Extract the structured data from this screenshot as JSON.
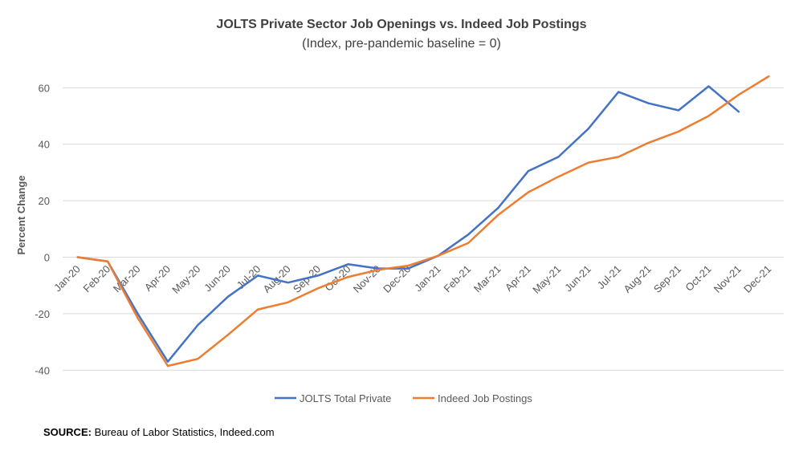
{
  "chart_data": {
    "type": "line",
    "title": "JOLTS Private Sector Job Openings vs. Indeed Job Postings",
    "subtitle": "(Index, pre-pandemic baseline = 0)",
    "xlabel": "",
    "ylabel": "Percent Change",
    "categories": [
      "Jan-20",
      "Feb-20",
      "Mar-20",
      "Apr-20",
      "May-20",
      "Jun-20",
      "Jul-20",
      "Aug-20",
      "Sep-20",
      "Oct-20",
      "Nov-20",
      "Dec-20",
      "Jan-21",
      "Feb-21",
      "Mar-21",
      "Apr-21",
      "May-21",
      "Jun-21",
      "Jul-21",
      "Aug-21",
      "Sep-21",
      "Oct-21",
      "Nov-21",
      "Dec-21"
    ],
    "yticks": [
      -40,
      -20,
      0,
      20,
      40,
      60
    ],
    "ylim": [
      -50,
      70
    ],
    "grid": true,
    "legend_position": "bottom",
    "series": [
      {
        "name": "JOLTS Total Private",
        "color": "#4472C4",
        "values": [
          0,
          -1.5,
          -20,
          -37,
          -24,
          -14,
          -6.5,
          -9,
          -6.5,
          -2.5,
          -4,
          -4,
          0.5,
          8,
          17.5,
          30.5,
          35.5,
          45.5,
          58.5,
          54.5,
          52,
          60.5,
          51.5,
          null
        ]
      },
      {
        "name": "Indeed Job Postings",
        "color": "#ED7D31",
        "values": [
          0,
          -1.5,
          -21.5,
          -38.5,
          -36,
          -27.5,
          -18.5,
          -16,
          -11,
          -7,
          -4.5,
          -3,
          0.5,
          5,
          15,
          23,
          28.5,
          33.5,
          35.5,
          40.5,
          44.5,
          50,
          57.5,
          64
        ]
      }
    ]
  },
  "source": {
    "label": "SOURCE:",
    "text": " Bureau of Labor Statistics, Indeed.com"
  }
}
